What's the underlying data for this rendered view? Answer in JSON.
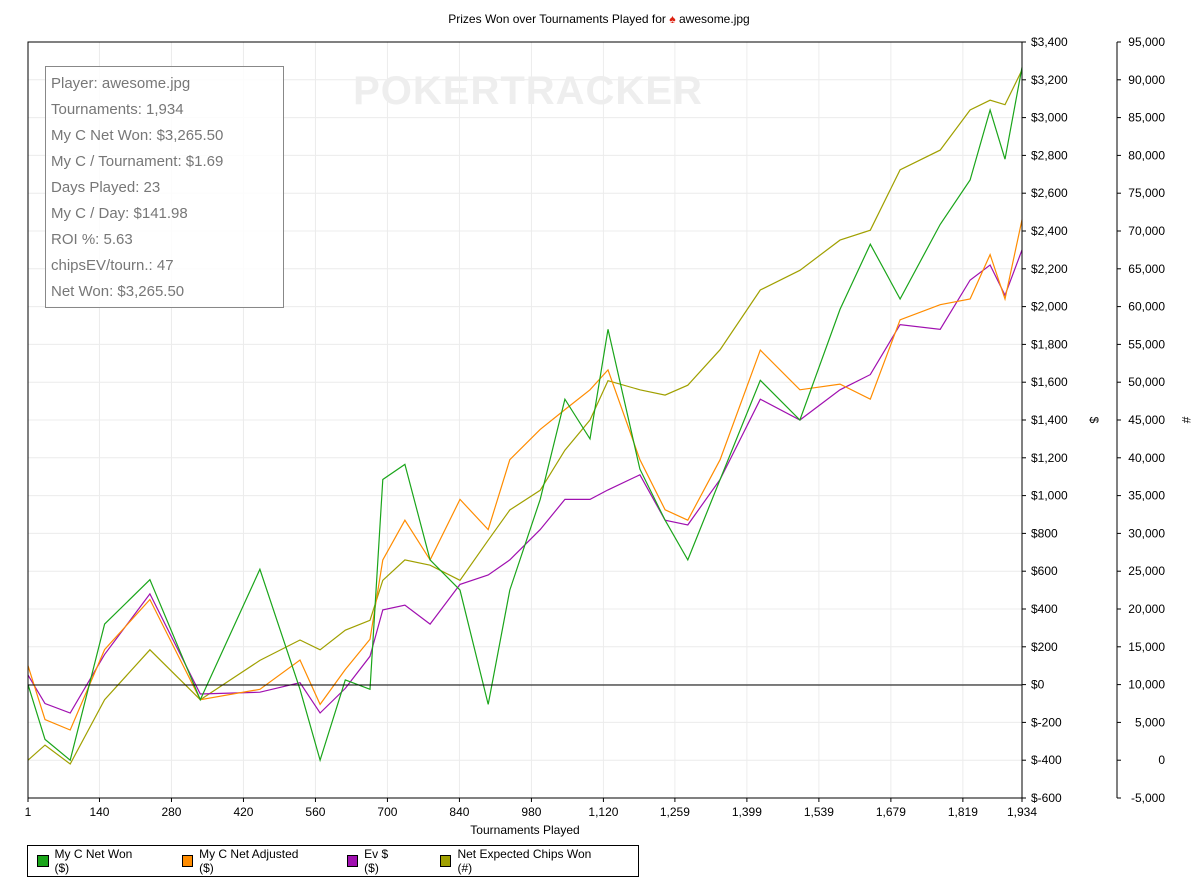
{
  "title": {
    "prefix": "Prizes Won over Tournaments Played for",
    "icon": "spade-icon",
    "player": "awesome.jpg"
  },
  "watermark": "POKERTRACKER",
  "info_box": [
    "Player: awesome.jpg",
    "Tournaments: 1,934",
    "My C Net Won: $3,265.50",
    "My C / Tournament: $1.69",
    "Days Played: 23",
    "My C / Day: $141.98",
    "ROI %: 5.63",
    "chipsEV/tourn.: 47",
    "Net Won: $3,265.50"
  ],
  "chart_data": {
    "type": "line",
    "title": "Prizes Won over Tournaments Played for awesome.jpg",
    "xlabel": "Tournaments Played",
    "ylabel": "$",
    "y2label": "#",
    "xlim": [
      1,
      1934
    ],
    "ylim": [
      -600,
      3400
    ],
    "y2lim": [
      -5000,
      95000
    ],
    "grid": true,
    "legend_position": "bottom-left",
    "x_ticks": [
      1,
      140,
      280,
      420,
      560,
      700,
      840,
      980,
      1120,
      1259,
      1399,
      1539,
      1679,
      1819,
      1934
    ],
    "x_tick_labels": [
      "1",
      "140",
      "280",
      "420",
      "560",
      "700",
      "840",
      "980",
      "1,120",
      "1,259",
      "1,399",
      "1,539",
      "1,679",
      "1,819",
      "1,934"
    ],
    "y_ticks": [
      -600,
      -400,
      -200,
      0,
      200,
      400,
      600,
      800,
      1000,
      1200,
      1400,
      1600,
      1800,
      2000,
      2200,
      2400,
      2600,
      2800,
      3000,
      3200,
      3400
    ],
    "y_tick_labels": [
      "$-600",
      "$-400",
      "$-200",
      "$0",
      "$200",
      "$400",
      "$600",
      "$800",
      "$1,000",
      "$1,200",
      "$1,400",
      "$1,600",
      "$1,800",
      "$2,000",
      "$2,200",
      "$2,400",
      "$2,600",
      "$2,800",
      "$3,000",
      "$3,200",
      "$3,400"
    ],
    "y2_ticks": [
      -5000,
      0,
      5000,
      10000,
      15000,
      20000,
      25000,
      30000,
      35000,
      40000,
      45000,
      50000,
      55000,
      60000,
      65000,
      70000,
      75000,
      80000,
      85000,
      90000,
      95000
    ],
    "y2_tick_labels": [
      "-5,000",
      "0",
      "5,000",
      "10,000",
      "15,000",
      "20,000",
      "25,000",
      "30,000",
      "35,000",
      "40,000",
      "45,000",
      "50,000",
      "55,000",
      "60,000",
      "65,000",
      "70,000",
      "75,000",
      "80,000",
      "85,000",
      "90,000",
      "95,000"
    ],
    "x": [
      1,
      34,
      83,
      150,
      238,
      336,
      452,
      530,
      569,
      618,
      666,
      691,
      734,
      783,
      841,
      896,
      938,
      997,
      1045,
      1094,
      1129,
      1191,
      1240,
      1284,
      1347,
      1425,
      1502,
      1580,
      1639,
      1697,
      1775,
      1833,
      1872,
      1901,
      1934
    ],
    "series": [
      {
        "name": "My C Net Won ($)",
        "color": "#1aa51a",
        "axis": "left",
        "values": [
          0,
          -290,
          -400,
          320,
          555,
          -80,
          610,
          -25,
          -400,
          25,
          -25,
          1085,
          1165,
          660,
          500,
          -105,
          500,
          980,
          1510,
          1300,
          1880,
          1140,
          870,
          660,
          1085,
          1610,
          1400,
          1985,
          2330,
          2040,
          2435,
          2670,
          3040,
          2780,
          3265.5
        ]
      },
      {
        "name": "My C Net Adjusted ($)",
        "color": "#ff8c00",
        "axis": "left",
        "values": [
          100,
          -185,
          -240,
          185,
          450,
          -80,
          -25,
          130,
          -105,
          80,
          240,
          660,
          870,
          660,
          980,
          820,
          1190,
          1350,
          1455,
          1560,
          1665,
          1190,
          925,
          870,
          1190,
          1770,
          1560,
          1590,
          1510,
          1930,
          2010,
          2040,
          2275,
          2040,
          2460
        ]
      },
      {
        "name": "Ev $ ($)",
        "color": "#a010b0",
        "axis": "left",
        "values": [
          50,
          -100,
          -150,
          160,
          480,
          -50,
          -40,
          10,
          -150,
          -20,
          150,
          395,
          420,
          320,
          530,
          580,
          660,
          820,
          980,
          980,
          1030,
          1110,
          870,
          845,
          1085,
          1510,
          1400,
          1560,
          1640,
          1905,
          1880,
          2140,
          2220,
          2060,
          2300
        ]
      },
      {
        "name": "Net Expected Chips Won (#)",
        "color": "#a0a000",
        "axis": "right",
        "values": [
          0,
          2000,
          -500,
          8000,
          14600,
          8000,
          13200,
          15900,
          14600,
          17200,
          18500,
          23800,
          26500,
          25800,
          23800,
          29100,
          33100,
          35700,
          41000,
          45000,
          50200,
          49000,
          48300,
          49600,
          54300,
          62200,
          64800,
          68800,
          70100,
          78100,
          80700,
          86000,
          87300,
          86700,
          91300
        ]
      }
    ]
  }
}
